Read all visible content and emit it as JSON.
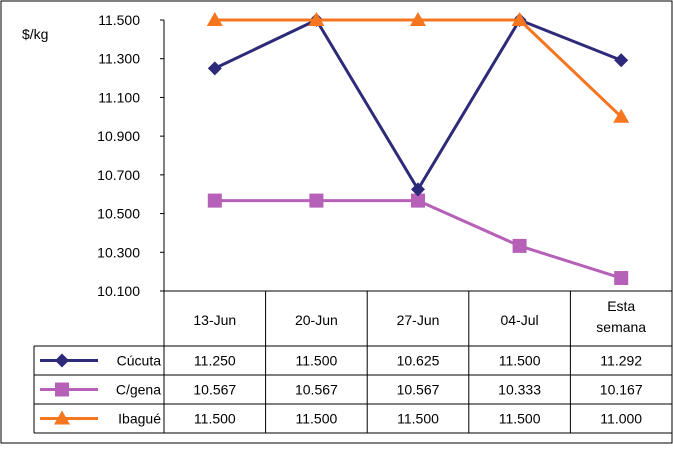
{
  "chart_data": {
    "type": "line",
    "ylabel": "$/kg",
    "ylim": [
      10100,
      11500
    ],
    "yticks": [
      10100,
      10300,
      10500,
      10700,
      10900,
      11100,
      11300,
      11500
    ],
    "ytick_labels": [
      "10.100",
      "10.300",
      "10.500",
      "10.700",
      "10.900",
      "11.100",
      "11.300",
      "11.500"
    ],
    "categories": [
      "13-Jun",
      "20-Jun",
      "27-Jun",
      "04-Jul",
      "Esta semana"
    ],
    "category_lines": [
      [
        "13-Jun"
      ],
      [
        "20-Jun"
      ],
      [
        "27-Jun"
      ],
      [
        "04-Jul"
      ],
      [
        "Esta",
        "semana"
      ]
    ],
    "grid": false,
    "legend": "data-table",
    "series": [
      {
        "name": "Cúcuta",
        "color": "#2e2a7a",
        "marker": "diamond",
        "values": [
          11250,
          11500,
          10625,
          11500,
          11292
        ],
        "labels": [
          "11.250",
          "11.500",
          "10.625",
          "11.500",
          "11.292"
        ]
      },
      {
        "name": "C/gena",
        "color": "#b660b8",
        "marker": "square",
        "values": [
          10567,
          10567,
          10567,
          10333,
          10167
        ],
        "labels": [
          "10.567",
          "10.567",
          "10.567",
          "10.333",
          "10.167"
        ]
      },
      {
        "name": "Ibagué",
        "color": "#f5761f",
        "marker": "triangle",
        "values": [
          11500,
          11500,
          11500,
          11500,
          11000
        ],
        "labels": [
          "11.500",
          "11.500",
          "11.500",
          "11.500",
          "11.000"
        ]
      }
    ]
  }
}
